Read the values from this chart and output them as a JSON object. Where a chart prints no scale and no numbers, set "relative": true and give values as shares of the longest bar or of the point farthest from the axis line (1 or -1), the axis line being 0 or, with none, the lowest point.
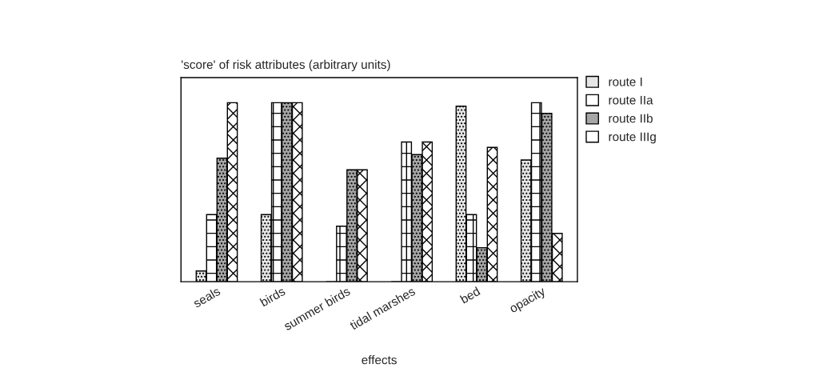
{
  "chart_data": {
    "type": "bar",
    "relative": true,
    "title": "'score' of risk attributes (arbitrary units)",
    "xlabel": "effects",
    "categories": [
      "seals",
      "birds",
      "summer birds",
      "tidal marshes",
      "bed",
      "opacity"
    ],
    "series": [
      {
        "name": "route I",
        "color": "#e6e6e6",
        "values": [
          0.06,
          0.375,
          0,
          0,
          0.98,
          0.68
        ]
      },
      {
        "name": "route IIa",
        "color": "#ffffff",
        "values": [
          0.375,
          1,
          0.31,
          0.78,
          0.375,
          1
        ]
      },
      {
        "name": "route IIb",
        "color": "#a6a6a6",
        "values": [
          0.69,
          1,
          0.625,
          0.71,
          0.19,
          0.94
        ]
      },
      {
        "name": "route IIIg",
        "color": "#ffffff",
        "values": [
          1,
          1,
          0.625,
          0.78,
          0.75,
          0.27
        ]
      }
    ],
    "legend": "right",
    "grid": false
  }
}
